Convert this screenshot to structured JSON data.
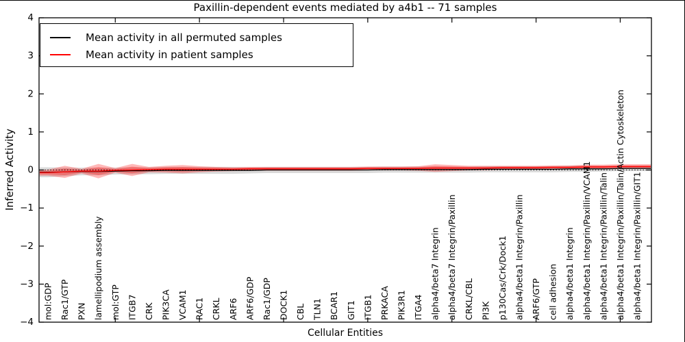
{
  "chart_data": {
    "type": "line",
    "title": "Paxillin-dependent events mediated by a4b1 -- 71 samples",
    "xlabel": "Cellular Entities",
    "ylabel": "Inferred Activity",
    "ylim": [
      -4,
      4
    ],
    "yticks": [
      4,
      3,
      2,
      1,
      0,
      -1,
      -2,
      -3,
      -4
    ],
    "grid": false,
    "legend_position": "upper left",
    "zero_line": {
      "style": "dotted",
      "color": "#000000",
      "y": 0
    },
    "major_tick_indices": [
      4,
      9,
      14,
      19,
      24,
      29,
      34
    ],
    "categories": [
      "mol:GDP",
      "Rac1/GTP",
      "PXN",
      "lamellipodium assembly",
      "mol:GTP",
      "ITGB7",
      "CRK",
      "PIK3CA",
      "VCAM1",
      "RAC1",
      "CRKL",
      "ARF6",
      "ARF6/GDP",
      "Rac1/GDP",
      "DOCK1",
      "CBL",
      "TLN1",
      "BCAR1",
      "GIT1",
      "ITGB1",
      "PRKACA",
      "PIK3R1",
      "ITGA4",
      "alpha4/beta7 Integrin",
      "alpha4/beta7 Integrin/Paxillin",
      "CRKL/CBL",
      "PI3K",
      "p130Cas/Crk/Dock1",
      "alpha4/beta1 Integrin/Paxillin",
      "ARF6/GTP",
      "cell adhesion",
      "alpha4/beta1 Integrin",
      "alpha4/beta1 Integrin/Paxillin/VCAM1",
      "alpha4/beta1 Integrin/Paxillin/Talin",
      "alpha4/beta1 Integrin/Paxillin/Talin/Actin Cytoskeleton",
      "alpha4/beta1 Integrin/Paxillin/GIT1"
    ],
    "series": [
      {
        "name": "Mean activity in all permuted samples",
        "color": "#000000",
        "band_color": "rgba(130,130,130,0.30)",
        "values": [
          -0.06,
          -0.05,
          -0.04,
          -0.04,
          -0.03,
          -0.02,
          -0.02,
          -0.01,
          -0.01,
          -0.01,
          -0.01,
          -0.01,
          -0.01,
          0,
          0,
          0,
          0,
          0,
          0,
          0,
          0.01,
          0.01,
          0.01,
          0.01,
          0.01,
          0.01,
          0.02,
          0.02,
          0.02,
          0.02,
          0.02,
          0.03,
          0.03,
          0.03,
          0.04,
          0.04
        ],
        "band": [
          0.13,
          0.11,
          0.1,
          0.1,
          0.09,
          0.09,
          0.09,
          0.09,
          0.09,
          0.09,
          0.09,
          0.09,
          0.08,
          0.08,
          0.08,
          0.08,
          0.08,
          0.08,
          0.08,
          0.08,
          0.08,
          0.08,
          0.08,
          0.08,
          0.08,
          0.08,
          0.08,
          0.08,
          0.08,
          0.08,
          0.08,
          0.08,
          0.08,
          0.07,
          0.07,
          0.07
        ]
      },
      {
        "name": "Mean activity in patient samples",
        "color": "#ff0000",
        "band_color": "rgba(255,0,0,0.28)",
        "values": [
          -0.07,
          -0.05,
          -0.03,
          -0.03,
          -0.01,
          0,
          0.01,
          0.02,
          0.02,
          0.02,
          0.02,
          0.02,
          0.03,
          0.03,
          0.03,
          0.03,
          0.03,
          0.03,
          0.03,
          0.04,
          0.04,
          0.04,
          0.04,
          0.05,
          0.05,
          0.05,
          0.05,
          0.06,
          0.06,
          0.06,
          0.07,
          0.07,
          0.08,
          0.08,
          0.09,
          0.09
        ],
        "band": [
          0.08,
          0.16,
          0.06,
          0.19,
          0.06,
          0.16,
          0.07,
          0.09,
          0.11,
          0.08,
          0.06,
          0.05,
          0.05,
          0.05,
          0.05,
          0.05,
          0.05,
          0.05,
          0.05,
          0.05,
          0.05,
          0.05,
          0.06,
          0.1,
          0.08,
          0.06,
          0.06,
          0.05,
          0.05,
          0.05,
          0.05,
          0.05,
          0.06,
          0.06,
          0.06,
          0.06
        ]
      }
    ]
  }
}
